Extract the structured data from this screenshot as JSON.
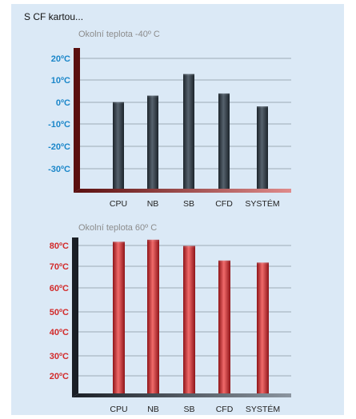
{
  "header": {
    "title": "S CF kartou..."
  },
  "colors": {
    "panel_bg": "#dbe9f6",
    "blue_axis": "#1a86c9",
    "red_axis": "#d22a2a",
    "dark_bar": "#2f3a44",
    "red_bar": "#c0272d"
  },
  "chart_data": [
    {
      "type": "bar",
      "title": "Okolní teplota -40º C",
      "categories": [
        "CPU",
        "NB",
        "SB",
        "CFD",
        "SYSTÉM"
      ],
      "values": [
        -1,
        2,
        12,
        3,
        -3
      ],
      "yticks": [
        "20ºC",
        "10ºC",
        "0ºC",
        "-10ºC",
        "-20ºC",
        "-30ºC"
      ],
      "ylim": [
        -40,
        25
      ],
      "grid": true,
      "color": "#2f3a44"
    },
    {
      "type": "bar",
      "title": "Okolní teplota 60º C",
      "categories": [
        "CPU",
        "NB",
        "SB",
        "CFD",
        "SYSTÉM"
      ],
      "values": [
        81,
        82,
        79,
        72,
        71
      ],
      "yticks": [
        "80ºC",
        "70ºC",
        "60ºC",
        "50ºC",
        "40ºC",
        "30ºC",
        "20ºC"
      ],
      "ylim": [
        12,
        82
      ],
      "grid": true,
      "color": "#c0272d"
    }
  ]
}
